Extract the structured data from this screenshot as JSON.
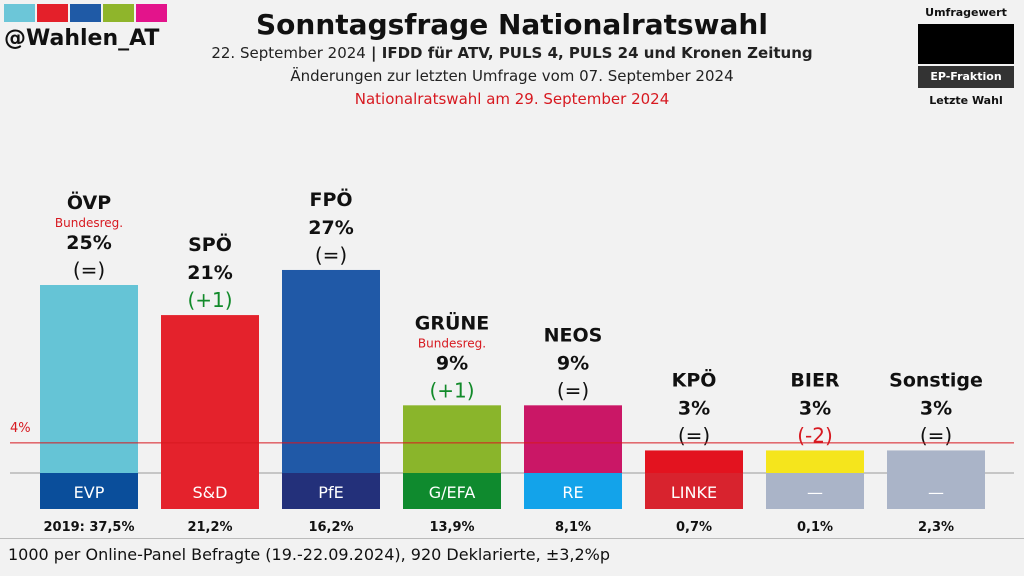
{
  "brand": {
    "handle": "@Wahlen_AT",
    "swatches": [
      "#6cc6d8",
      "#e4202a",
      "#1f5aa6",
      "#8fb52b",
      "#e3148b"
    ]
  },
  "header": {
    "title": "Sonntagsfrage Nationalratswahl",
    "date": "22. September 2024",
    "sep": " | ",
    "institute": "IFDD für ATV, PULS 4, PULS 24 und Kronen Zeitung",
    "changes": "Änderungen zur letzten Umfrage vom 07. September 2024",
    "election": "Nationalratswahl am 29. September 2024"
  },
  "legend": {
    "top": "Umfragewert",
    "middle": "EP-Fraktion",
    "bottom": "Letzte Wahl"
  },
  "chart_data": {
    "type": "bar",
    "ylim": [
      0,
      30
    ],
    "threshold": {
      "value": 4,
      "label": "4%"
    },
    "parties": [
      {
        "name": "ÖVP",
        "value": 25,
        "value_label": "25%",
        "change": "(=)",
        "change_color": "#111111",
        "tag": "Bundesreg.",
        "color": "#65c4d6",
        "group": "EVP",
        "group_color": "#0a4e9b",
        "last_label": "2019: 37,5%"
      },
      {
        "name": "SPÖ",
        "value": 21,
        "value_label": "21%",
        "change": "(+1)",
        "change_color": "#128a2a",
        "tag": "",
        "color": "#e4222c",
        "group": "S&D",
        "group_color": "#e4222c",
        "last_label": "21,2%"
      },
      {
        "name": "FPÖ",
        "value": 27,
        "value_label": "27%",
        "change": "(=)",
        "change_color": "#111111",
        "tag": "",
        "color": "#2059a7",
        "group": "PfE",
        "group_color": "#23307a",
        "last_label": "16,2%"
      },
      {
        "name": "GRÜNE",
        "value": 9,
        "value_label": "9%",
        "change": "(+1)",
        "change_color": "#128a2a",
        "tag": "Bundesreg.",
        "color": "#8ab52b",
        "group": "G/EFA",
        "group_color": "#0f8a2e",
        "last_label": "13,9%"
      },
      {
        "name": "NEOS",
        "value": 9,
        "value_label": "9%",
        "change": "(=)",
        "change_color": "#111111",
        "tag": "",
        "color": "#ca1766",
        "group": "RE",
        "group_color": "#13a3ea",
        "last_label": "8,1%"
      },
      {
        "name": "KPÖ",
        "value": 3,
        "value_label": "3%",
        "change": "(=)",
        "change_color": "#111111",
        "tag": "",
        "color": "#e3131f",
        "group": "LINKE",
        "group_color": "#d8232e",
        "last_label": "0,7%"
      },
      {
        "name": "BIER",
        "value": 3,
        "value_label": "3%",
        "change": "(-2)",
        "change_color": "#d71920",
        "tag": "",
        "color": "#f5e51c",
        "group": "—",
        "group_color": "#aab4c8",
        "last_label": "0,1%"
      },
      {
        "name": "Sonstige",
        "value": 3,
        "value_label": "3%",
        "change": "(=)",
        "change_color": "#111111",
        "tag": "",
        "color": "#aab4c8",
        "group": "—",
        "group_color": "#aab4c8",
        "last_label": "2,3%"
      }
    ]
  },
  "footer": {
    "note": "1000 per Online-Panel Befragte (19.-22.09.2024), 920 Deklarierte, ±3,2%p"
  }
}
